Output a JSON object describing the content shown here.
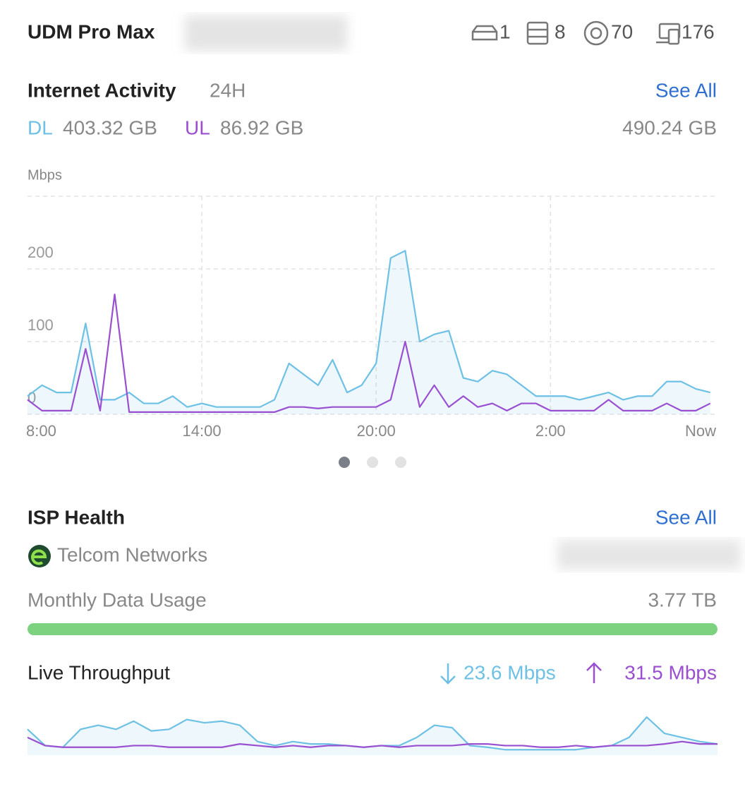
{
  "header": {
    "title": "UDM Pro Max",
    "stats": [
      1,
      8,
      70,
      176
    ]
  },
  "internet_activity": {
    "title": "Internet Activity",
    "period": "24H",
    "see_all": "See All",
    "dl_total": "403.32 GB",
    "ul_total": "86.92 GB",
    "total": "490.24 GB",
    "chart": {
      "type": "line",
      "y_label": "Mbps",
      "x": [
        0,
        0.5,
        1,
        1.5,
        2,
        2.5,
        3,
        3.5,
        4,
        4.5,
        5,
        5.5,
        6,
        6.5,
        7,
        7.5,
        8,
        8.5,
        9,
        9.5,
        10,
        10.5,
        11,
        11.5,
        12,
        12.5,
        13,
        13.5,
        14,
        14.5,
        15,
        15.5,
        16,
        16.5,
        17,
        17.5,
        18,
        18.5,
        19,
        19.5,
        20,
        20.5,
        21,
        21.5,
        22,
        22.5,
        23,
        23.5
      ],
      "xlim": [
        0,
        23.7
      ],
      "xticks": [
        {
          "value": 0,
          "label": "8:00"
        },
        {
          "value": 6,
          "label": "14:00"
        },
        {
          "value": 12,
          "label": "20:00"
        },
        {
          "value": 18,
          "label": "2:00"
        },
        {
          "value": 23.7,
          "label": "Now"
        }
      ],
      "ylim": [
        0,
        300
      ],
      "yticks": [
        0,
        100,
        200
      ],
      "grid": true,
      "series": [
        {
          "name": "DL",
          "color": "#6ec1e4",
          "values": [
            25,
            40,
            30,
            30,
            125,
            20,
            20,
            30,
            15,
            15,
            25,
            10,
            15,
            10,
            10,
            10,
            10,
            20,
            70,
            55,
            40,
            75,
            30,
            40,
            70,
            215,
            225,
            100,
            110,
            115,
            50,
            45,
            60,
            55,
            40,
            25,
            25,
            25,
            20,
            25,
            30,
            20,
            25,
            25,
            45,
            45,
            35,
            30
          ]
        },
        {
          "name": "UL",
          "color": "#9a4fd1",
          "values": [
            20,
            5,
            5,
            5,
            90,
            5,
            165,
            3,
            3,
            3,
            3,
            3,
            3,
            3,
            3,
            3,
            3,
            3,
            10,
            10,
            8,
            10,
            10,
            10,
            10,
            20,
            100,
            10,
            40,
            10,
            25,
            10,
            15,
            5,
            15,
            15,
            5,
            5,
            5,
            5,
            20,
            5,
            5,
            5,
            15,
            5,
            5,
            15
          ]
        }
      ]
    }
  },
  "isp_health": {
    "title": "ISP Health",
    "see_all": "See All",
    "provider": "Telcom Networks",
    "monthly_label": "Monthly Data Usage",
    "monthly_value": "3.77 TB"
  },
  "live_throughput": {
    "label": "Live Throughput",
    "download": "23.6 Mbps",
    "upload": "31.5 Mbps",
    "chart": {
      "type": "line",
      "series": [
        {
          "color": "#6ec1e4",
          "values": [
            30,
            10,
            8,
            30,
            35,
            30,
            40,
            28,
            30,
            42,
            38,
            40,
            35,
            15,
            10,
            15,
            12,
            12,
            10,
            8,
            10,
            10,
            20,
            35,
            32,
            10,
            8,
            5,
            5,
            5,
            5,
            5,
            8,
            10,
            20,
            45,
            25,
            20,
            15,
            12
          ]
        },
        {
          "color": "#9a4fd1",
          "values": [
            20,
            10,
            8,
            8,
            8,
            8,
            10,
            10,
            8,
            8,
            8,
            8,
            12,
            10,
            8,
            10,
            8,
            10,
            10,
            8,
            10,
            8,
            10,
            10,
            10,
            12,
            12,
            10,
            10,
            8,
            8,
            10,
            8,
            10,
            10,
            10,
            12,
            15,
            12,
            12
          ]
        }
      ]
    }
  }
}
